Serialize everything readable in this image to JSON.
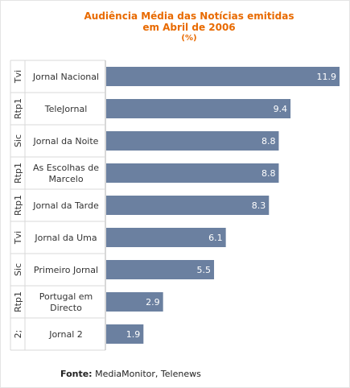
{
  "chart_data": {
    "type": "bar",
    "orientation": "horizontal",
    "title": "Audiência Média das Notícias emitidas",
    "title_line2": "em Abril de 2006",
    "subtitle": "(%)",
    "group_labels": [
      "Tvi",
      "Rtp1",
      "Sic",
      "Rtp1",
      "Rtp1",
      "Tvi",
      "Sic",
      "Rtp1",
      "2;"
    ],
    "categories": [
      [
        "Jornal Nacional"
      ],
      [
        "TeleJornal"
      ],
      [
        "Jornal da Noite"
      ],
      [
        "As Escolhas de",
        "Marcelo"
      ],
      [
        "Jornal da Tarde"
      ],
      [
        "Jornal da Uma"
      ],
      [
        "Primeiro Jornal"
      ],
      [
        "Portugal em",
        "Directo"
      ],
      [
        "Jornal 2"
      ]
    ],
    "values": [
      11.9,
      9.4,
      8.8,
      8.8,
      8.3,
      6.1,
      5.5,
      2.9,
      1.9
    ],
    "value_labels": [
      "11.9",
      "9.4",
      "8.8",
      "8.8",
      "8.3",
      "6.1",
      "5.5",
      "2.9",
      "1.9"
    ],
    "xlim": [
      0,
      11.9
    ],
    "bar_color": "#6b80a0",
    "value_label_color": "#ffffff",
    "title_color": "#e86a00",
    "grid": false
  },
  "source": {
    "label": "Fonte:",
    "text": " MediaMonitor, Telenews"
  }
}
